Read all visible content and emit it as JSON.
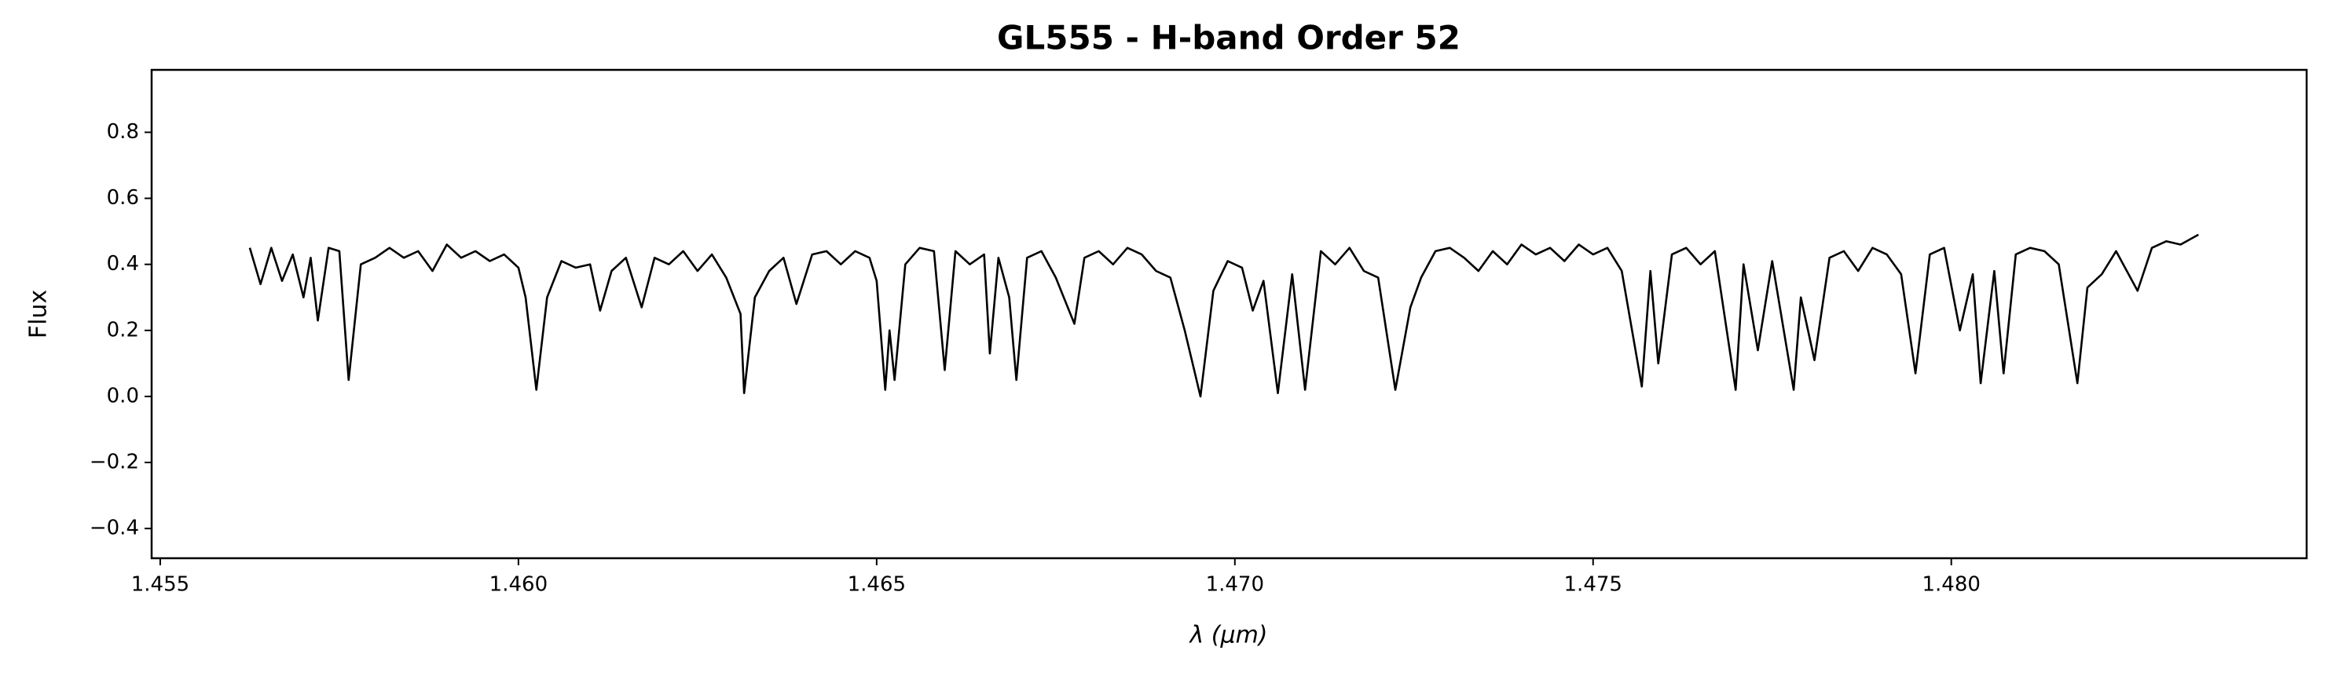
{
  "chart_data": {
    "type": "line",
    "title": "GL555 - H-band Order 52",
    "xlabel": "λ (μm)",
    "ylabel": "Flux",
    "color": "#000000",
    "xlim": [
      1.45488,
      1.48496
    ],
    "ylim": [
      -0.49,
      0.989
    ],
    "xticks": [
      1.455,
      {
        "value": 1.46,
        "label": "1.460"
      },
      1.465,
      {
        "value": 1.47,
        "label": "1.470"
      },
      1.475,
      {
        "value": 1.48,
        "label": "1.480"
      }
    ],
    "yticks": [
      {
        "value": -0.4,
        "label": "−0.4"
      },
      {
        "value": -0.2,
        "label": "−0.2"
      },
      {
        "value": 0,
        "label": "0.0"
      },
      0.2,
      0.4,
      0.6,
      0.8
    ],
    "x": [
      1.45625,
      1.4564,
      1.45655,
      1.4567,
      1.45685,
      1.457,
      1.4571,
      1.4572,
      1.45735,
      1.4575,
      1.45763,
      1.4578,
      1.458,
      1.4582,
      1.4584,
      1.4586,
      1.4588,
      1.459,
      1.4592,
      1.4594,
      1.4596,
      1.4598,
      1.46,
      1.4601,
      1.46025,
      1.4604,
      1.4606,
      1.4608,
      1.461,
      1.46114,
      1.4613,
      1.4615,
      1.46172,
      1.4619,
      1.4621,
      1.4623,
      1.4625,
      1.4627,
      1.4629,
      1.4631,
      1.46315,
      1.4633,
      1.4635,
      1.4637,
      1.46388,
      1.4641,
      1.4643,
      1.4645,
      1.4647,
      1.4649,
      1.465,
      1.46512,
      1.46518,
      1.46525,
      1.4654,
      1.4656,
      1.4658,
      1.46595,
      1.4661,
      1.4663,
      1.4665,
      1.46658,
      1.4667,
      1.46685,
      1.46695,
      1.4671,
      1.4673,
      1.4675,
      1.46776,
      1.4679,
      1.4681,
      1.4683,
      1.4685,
      1.4687,
      1.4689,
      1.4691,
      1.4693,
      1.46952,
      1.4697,
      1.4699,
      1.4701,
      1.47025,
      1.4704,
      1.4706,
      1.4708,
      1.47098,
      1.4712,
      1.4714,
      1.4716,
      1.4718,
      1.472,
      1.47224,
      1.47245,
      1.4726,
      1.4728,
      1.473,
      1.4732,
      1.4734,
      1.4736,
      1.4738,
      1.474,
      1.4742,
      1.4744,
      1.4746,
      1.4748,
      1.475,
      1.4752,
      1.4754,
      1.47568,
      1.4758,
      1.47591,
      1.4761,
      1.4763,
      1.4765,
      1.4767,
      1.47699,
      1.4771,
      1.4773,
      1.4775,
      1.4778,
      1.4779,
      1.47809,
      1.4783,
      1.4785,
      1.4787,
      1.4789,
      1.4791,
      1.4793,
      1.4795,
      1.4797,
      1.4799,
      1.48012,
      1.4803,
      1.48041,
      1.4806,
      1.48073,
      1.4809,
      1.4811,
      1.4813,
      1.4815,
      1.48176,
      1.4819,
      1.4821,
      1.4823,
      1.4826,
      1.4828,
      1.483,
      1.4832,
      1.48345
    ],
    "values": [
      0.45,
      0.34,
      0.45,
      0.35,
      0.43,
      0.3,
      0.42,
      0.23,
      0.45,
      0.44,
      0.05,
      0.4,
      0.42,
      0.45,
      0.42,
      0.44,
      0.38,
      0.46,
      0.42,
      0.44,
      0.41,
      0.43,
      0.39,
      0.3,
      0.02,
      0.3,
      0.41,
      0.39,
      0.4,
      0.26,
      0.38,
      0.42,
      0.27,
      0.42,
      0.4,
      0.44,
      0.38,
      0.43,
      0.36,
      0.25,
      0.01,
      0.3,
      0.38,
      0.42,
      0.28,
      0.43,
      0.44,
      0.4,
      0.44,
      0.42,
      0.35,
      0.02,
      0.2,
      0.05,
      0.4,
      0.45,
      0.44,
      0.08,
      0.44,
      0.4,
      0.43,
      0.13,
      0.42,
      0.3,
      0.05,
      0.42,
      0.44,
      0.36,
      0.22,
      0.42,
      0.44,
      0.4,
      0.45,
      0.43,
      0.38,
      0.36,
      0.2,
      0.0,
      0.32,
      0.41,
      0.39,
      0.26,
      0.35,
      0.01,
      0.37,
      0.02,
      0.44,
      0.4,
      0.45,
      0.38,
      0.36,
      0.02,
      0.27,
      0.36,
      0.44,
      0.45,
      0.42,
      0.38,
      0.44,
      0.4,
      0.46,
      0.43,
      0.45,
      0.41,
      0.46,
      0.43,
      0.45,
      0.38,
      0.03,
      0.38,
      0.1,
      0.43,
      0.45,
      0.4,
      0.44,
      0.02,
      0.4,
      0.14,
      0.41,
      0.02,
      0.3,
      0.11,
      0.42,
      0.44,
      0.38,
      0.45,
      0.43,
      0.37,
      0.07,
      0.43,
      0.45,
      0.2,
      0.37,
      0.04,
      0.38,
      0.07,
      0.43,
      0.45,
      0.44,
      0.4,
      0.04,
      0.33,
      0.37,
      0.44,
      0.32,
      0.45,
      0.47,
      0.46,
      0.49
    ]
  }
}
